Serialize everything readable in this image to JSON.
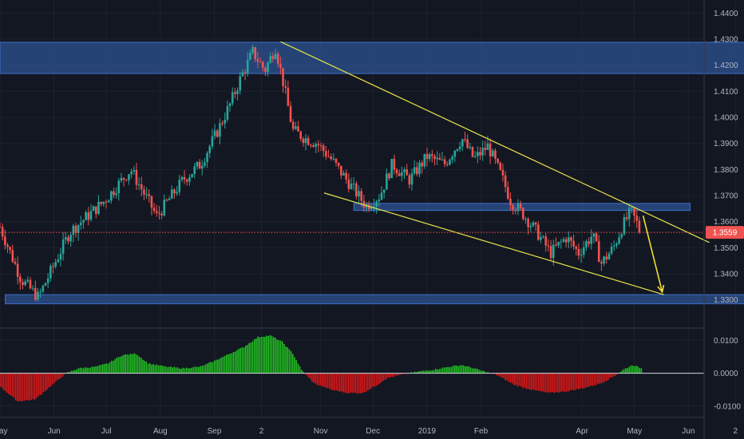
{
  "chart_data": [
    {
      "type": "candlestick",
      "price_axis": {
        "ticks": [
          "1.4400",
          "1.4300",
          "1.4200",
          "1.4100",
          "1.4000",
          "1.3900",
          "1.3800",
          "1.3700",
          "1.3600",
          "1.3500",
          "1.3400",
          "1.3300"
        ],
        "range": [
          1.3195,
          1.445
        ]
      },
      "time_axis": {
        "labels": [
          "May",
          "Jun",
          "Jul",
          "Aug",
          "Sep",
          "2",
          "Nov",
          "Dec",
          "2019",
          "Feb",
          "Apr",
          "May",
          "Jun",
          "2"
        ],
        "range_days": [
          0,
          404
        ]
      },
      "current_price": "1.3559",
      "key_closes": [
        {
          "x": 0,
          "y": 1.358
        },
        {
          "x": 12,
          "y": 1.338
        },
        {
          "x": 22,
          "y": 1.331
        },
        {
          "x": 40,
          "y": 1.356
        },
        {
          "x": 60,
          "y": 1.368
        },
        {
          "x": 75,
          "y": 1.38
        },
        {
          "x": 90,
          "y": 1.362
        },
        {
          "x": 105,
          "y": 1.376
        },
        {
          "x": 115,
          "y": 1.382
        },
        {
          "x": 125,
          "y": 1.395
        },
        {
          "x": 132,
          "y": 1.405
        },
        {
          "x": 138,
          "y": 1.415
        },
        {
          "x": 145,
          "y": 1.425
        },
        {
          "x": 152,
          "y": 1.418
        },
        {
          "x": 158,
          "y": 1.427
        },
        {
          "x": 162,
          "y": 1.415
        },
        {
          "x": 168,
          "y": 1.395
        },
        {
          "x": 175,
          "y": 1.392
        },
        {
          "x": 182,
          "y": 1.39
        },
        {
          "x": 190,
          "y": 1.384
        },
        {
          "x": 200,
          "y": 1.375
        },
        {
          "x": 210,
          "y": 1.366
        },
        {
          "x": 218,
          "y": 1.37
        },
        {
          "x": 225,
          "y": 1.382
        },
        {
          "x": 235,
          "y": 1.376
        },
        {
          "x": 245,
          "y": 1.385
        },
        {
          "x": 255,
          "y": 1.382
        },
        {
          "x": 265,
          "y": 1.392
        },
        {
          "x": 272,
          "y": 1.384
        },
        {
          "x": 280,
          "y": 1.389
        },
        {
          "x": 288,
          "y": 1.377
        },
        {
          "x": 293,
          "y": 1.368
        },
        {
          "x": 300,
          "y": 1.363
        },
        {
          "x": 308,
          "y": 1.356
        },
        {
          "x": 316,
          "y": 1.348
        },
        {
          "x": 325,
          "y": 1.354
        },
        {
          "x": 332,
          "y": 1.348
        },
        {
          "x": 340,
          "y": 1.355
        },
        {
          "x": 345,
          "y": 1.344
        },
        {
          "x": 352,
          "y": 1.35
        },
        {
          "x": 357,
          "y": 1.358
        },
        {
          "x": 362,
          "y": 1.364
        },
        {
          "x": 365,
          "y": 1.36
        },
        {
          "x": 368,
          "y": 1.356
        }
      ],
      "zones": [
        {
          "from": 1.4168,
          "to": 1.4288,
          "x_start": -6,
          "x_end": 471
        },
        {
          "from": 1.3643,
          "to": 1.367,
          "x_start": 203,
          "x_end": 396
        },
        {
          "from": 1.3285,
          "to": 1.332,
          "x_start": 3,
          "x_end": 440
        }
      ],
      "trendlines": [
        {
          "points": [
            [
              161,
              1.429
            ],
            [
              407,
              1.352
            ]
          ]
        },
        {
          "points": [
            [
              186,
              1.371
            ],
            [
              381,
              1.332
            ]
          ]
        }
      ],
      "projection_arrow": {
        "points": [
          [
            369,
            1.3623
          ],
          [
            380,
            1.333
          ]
        ]
      },
      "colors": {
        "background": "#131722",
        "bull": "#26a69a",
        "bear": "#ef5350",
        "zone_fill": "#2b4f8e",
        "zone_border": "#3e6fc8",
        "trendline": "#e7e34a",
        "arrow": "#f0e030",
        "price_line": "#ef5350",
        "price_tag": "#ef5350"
      }
    },
    {
      "type": "histogram",
      "indicator_axis": {
        "ticks": [
          "0.0100",
          "0.0000",
          "-0.0100"
        ],
        "range": [
          -0.0132,
          0.0135
        ]
      },
      "key_values": [
        {
          "x": 0,
          "y": -0.004
        },
        {
          "x": 10,
          "y": -0.0085
        },
        {
          "x": 20,
          "y": -0.008
        },
        {
          "x": 30,
          "y": -0.0035
        },
        {
          "x": 38,
          "y": 0.0
        },
        {
          "x": 45,
          "y": 0.0015
        },
        {
          "x": 55,
          "y": 0.002
        },
        {
          "x": 62,
          "y": 0.003
        },
        {
          "x": 70,
          "y": 0.0055
        },
        {
          "x": 78,
          "y": 0.006
        },
        {
          "x": 85,
          "y": 0.003
        },
        {
          "x": 95,
          "y": 0.002
        },
        {
          "x": 105,
          "y": 0.0015
        },
        {
          "x": 115,
          "y": 0.002
        },
        {
          "x": 122,
          "y": 0.0035
        },
        {
          "x": 130,
          "y": 0.0055
        },
        {
          "x": 140,
          "y": 0.008
        },
        {
          "x": 148,
          "y": 0.011
        },
        {
          "x": 155,
          "y": 0.0115
        },
        {
          "x": 162,
          "y": 0.0095
        },
        {
          "x": 168,
          "y": 0.006
        },
        {
          "x": 173,
          "y": 0.001
        },
        {
          "x": 180,
          "y": -0.003
        },
        {
          "x": 190,
          "y": -0.005
        },
        {
          "x": 200,
          "y": -0.006
        },
        {
          "x": 208,
          "y": -0.006
        },
        {
          "x": 215,
          "y": -0.004
        },
        {
          "x": 222,
          "y": -0.0015
        },
        {
          "x": 230,
          "y": -0.0005
        },
        {
          "x": 240,
          "y": 0.0005
        },
        {
          "x": 250,
          "y": 0.0012
        },
        {
          "x": 258,
          "y": 0.002
        },
        {
          "x": 265,
          "y": 0.0025
        },
        {
          "x": 272,
          "y": 0.0015
        },
        {
          "x": 278,
          "y": 0.0005
        },
        {
          "x": 285,
          "y": -0.0005
        },
        {
          "x": 295,
          "y": -0.0035
        },
        {
          "x": 305,
          "y": -0.005
        },
        {
          "x": 315,
          "y": -0.006
        },
        {
          "x": 325,
          "y": -0.0055
        },
        {
          "x": 335,
          "y": -0.0045
        },
        {
          "x": 345,
          "y": -0.003
        },
        {
          "x": 352,
          "y": -0.001
        },
        {
          "x": 358,
          "y": 0.0012
        },
        {
          "x": 363,
          "y": 0.0025
        },
        {
          "x": 368,
          "y": 0.0015
        }
      ],
      "colors": {
        "positive": "#22c022",
        "negative": "#e01818"
      }
    }
  ]
}
